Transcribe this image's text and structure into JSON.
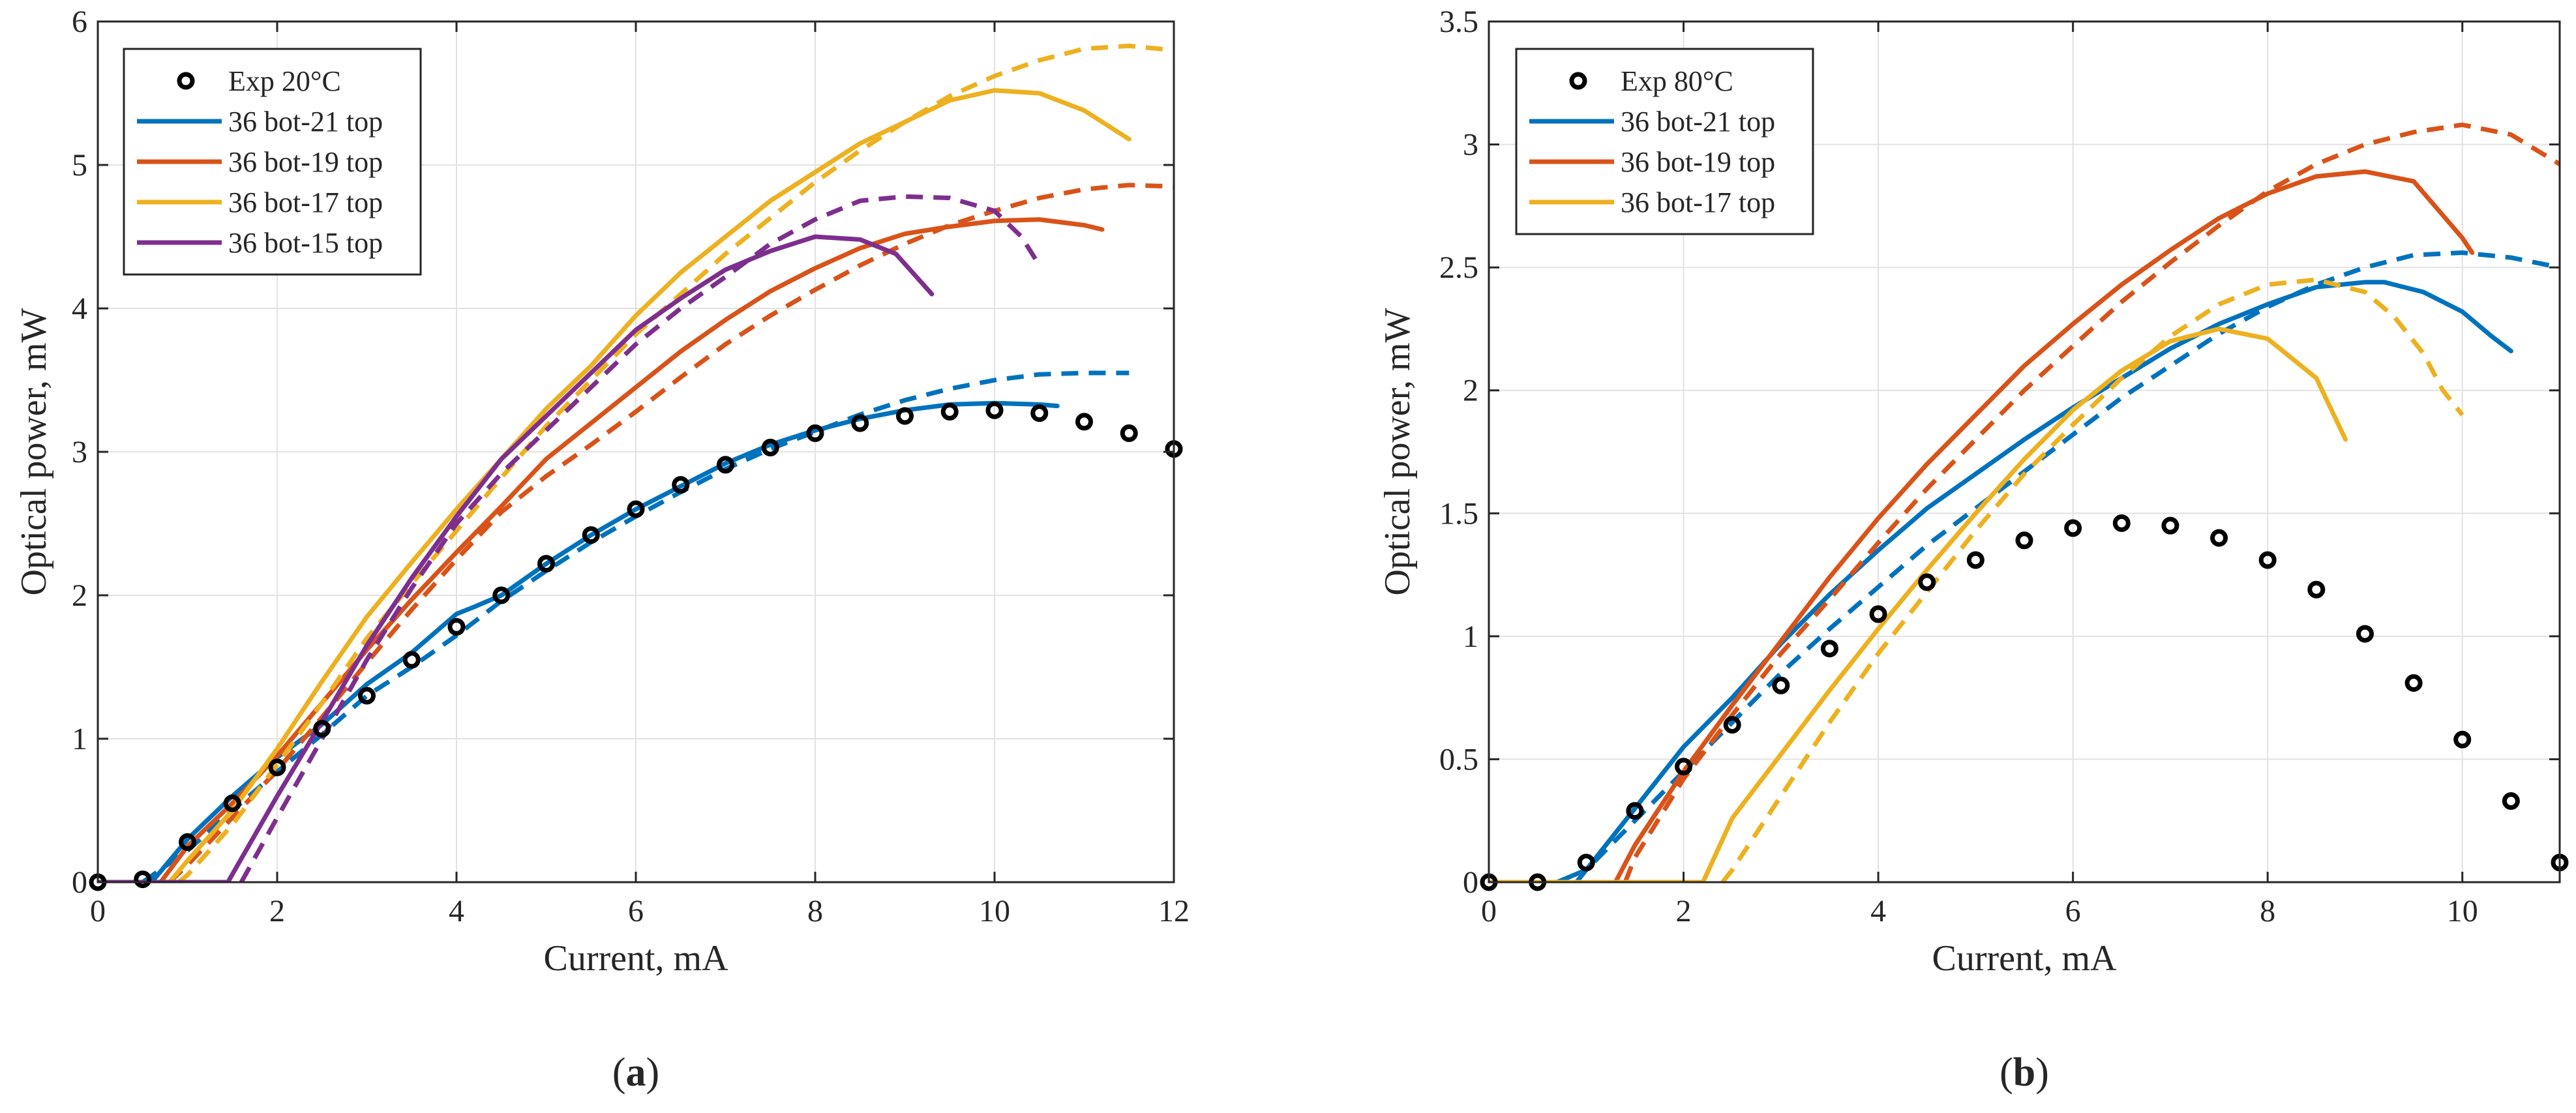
{
  "chart_data": [
    {
      "type": "line",
      "panel": "a",
      "caption_letter": "a",
      "xlabel": "Current, mA",
      "ylabel": "Optical power, mW",
      "xlim": [
        0,
        12
      ],
      "ylim": [
        0,
        6
      ],
      "xticks": [
        0,
        2,
        4,
        6,
        8,
        10,
        12
      ],
      "yticks": [
        0,
        1,
        2,
        3,
        4,
        5,
        6
      ],
      "xtick_labels": [
        "0",
        "2",
        "4",
        "6",
        "8",
        "10",
        "12"
      ],
      "ytick_labels": [
        "0",
        "1",
        "2",
        "3",
        "4",
        "5",
        "6"
      ],
      "grid": true,
      "legend_position": "top-left",
      "experimental": {
        "name": "Exp 20°C",
        "x": [
          0,
          0.5,
          1,
          1.5,
          2,
          2.5,
          3,
          3.5,
          4,
          4.5,
          5,
          5.5,
          6,
          6.5,
          7,
          7.5,
          8,
          8.5,
          9,
          9.5,
          10,
          10.5,
          11,
          11.5,
          12
        ],
        "y": [
          0,
          0.02,
          0.28,
          0.55,
          0.8,
          1.07,
          1.3,
          1.55,
          1.78,
          2.0,
          2.22,
          2.42,
          2.6,
          2.77,
          2.91,
          3.03,
          3.13,
          3.2,
          3.25,
          3.28,
          3.29,
          3.27,
          3.21,
          3.13,
          3.02
        ]
      },
      "series": [
        {
          "name": "36 bot-21 top",
          "color": "#0072BD",
          "solid": {
            "x": [
              0,
              0.6,
              1,
              1.5,
              2,
              2.5,
              3,
              3.5,
              4,
              4.2,
              4.5,
              5,
              5.5,
              6,
              6.5,
              7,
              7.5,
              8,
              8.5,
              9,
              9.5,
              10,
              10.5,
              10.7
            ],
            "y": [
              0,
              0,
              0.3,
              0.6,
              0.87,
              1.1,
              1.38,
              1.6,
              1.87,
              1.92,
              2.0,
              2.22,
              2.42,
              2.6,
              2.76,
              2.92,
              3.05,
              3.15,
              3.23,
              3.29,
              3.33,
              3.34,
              3.33,
              3.32
            ]
          },
          "dashed": {
            "x": [
              0.5,
              1,
              1.5,
              2,
              2.5,
              3,
              3.5,
              4,
              4.5,
              5,
              5.5,
              6,
              6.5,
              7,
              7.5,
              8,
              8.5,
              9,
              9.5,
              10,
              10.5,
              11,
              11.5
            ],
            "y": [
              0,
              0.22,
              0.5,
              0.77,
              1.03,
              1.3,
              1.5,
              1.72,
              1.96,
              2.17,
              2.37,
              2.55,
              2.72,
              2.88,
              3.02,
              3.14,
              3.26,
              3.36,
              3.44,
              3.5,
              3.54,
              3.55,
              3.55
            ]
          }
        },
        {
          "name": "36 bot-19 top",
          "color": "#D95319",
          "solid": {
            "x": [
              0.7,
              1,
              1.5,
              2,
              2.5,
              3,
              3.5,
              4,
              4.5,
              5,
              5.5,
              6,
              6.5,
              7,
              7.5,
              8,
              8.5,
              9,
              9.5,
              10,
              10.5,
              11,
              11.2
            ],
            "y": [
              0,
              0.25,
              0.55,
              0.88,
              1.25,
              1.62,
              1.97,
              2.3,
              2.62,
              2.95,
              3.2,
              3.45,
              3.7,
              3.92,
              4.12,
              4.28,
              4.42,
              4.52,
              4.57,
              4.61,
              4.62,
              4.58,
              4.55
            ]
          },
          "dashed": {
            "x": [
              0.8,
              1,
              1.5,
              2,
              2.5,
              3,
              3.5,
              4,
              4.5,
              5,
              5.5,
              6,
              6.5,
              7,
              7.5,
              8,
              8.5,
              9,
              9.5,
              10,
              10.5,
              11,
              11.5,
              12
            ],
            "y": [
              0,
              0.12,
              0.45,
              0.78,
              1.15,
              1.53,
              1.9,
              2.25,
              2.58,
              2.83,
              3.05,
              3.28,
              3.52,
              3.75,
              3.95,
              4.13,
              4.3,
              4.45,
              4.58,
              4.68,
              4.77,
              4.83,
              4.86,
              4.85
            ]
          }
        },
        {
          "name": "36 bot-17 top",
          "color": "#EDB120",
          "solid": {
            "x": [
              0.8,
              1,
              1.5,
              2,
              2.5,
              3,
              3.5,
              4,
              4.5,
              5,
              5.5,
              6,
              6.5,
              7,
              7.5,
              8,
              8.5,
              9,
              9.5,
              10,
              10.5,
              11,
              11.5
            ],
            "y": [
              0,
              0.15,
              0.5,
              0.93,
              1.4,
              1.85,
              2.23,
              2.6,
              2.95,
              3.3,
              3.6,
              3.95,
              4.25,
              4.5,
              4.75,
              4.95,
              5.15,
              5.3,
              5.45,
              5.52,
              5.5,
              5.38,
              5.18
            ]
          },
          "dashed": {
            "x": [
              0.9,
              1,
              1.5,
              2,
              2.5,
              3,
              3.5,
              4,
              4.5,
              5,
              5.5,
              6,
              6.5,
              7,
              7.5,
              8,
              8.5,
              9,
              9.5,
              10,
              10.5,
              11,
              11.5,
              12
            ],
            "y": [
              0,
              0.05,
              0.4,
              0.82,
              1.25,
              1.7,
              2.08,
              2.45,
              2.82,
              3.18,
              3.5,
              3.82,
              4.1,
              4.38,
              4.63,
              4.88,
              5.1,
              5.3,
              5.48,
              5.62,
              5.73,
              5.81,
              5.83,
              5.8
            ]
          }
        },
        {
          "name": "36 bot-15 top",
          "color": "#7E2F8E",
          "solid": {
            "x": [
              0,
              1.45,
              2,
              2.5,
              3,
              3.5,
              4,
              4.5,
              5,
              5.5,
              6,
              6.5,
              7,
              7.5,
              8,
              8.5,
              8.9,
              9.3
            ],
            "y": [
              0,
              0,
              0.6,
              1.12,
              1.65,
              2.12,
              2.55,
              2.95,
              3.25,
              3.55,
              3.85,
              4.07,
              4.27,
              4.4,
              4.5,
              4.48,
              4.38,
              4.1
            ]
          },
          "dashed": {
            "x": [
              1.6,
              2,
              2.5,
              3,
              3.5,
              4,
              4.5,
              5,
              5.5,
              6,
              6.5,
              7,
              7.5,
              8,
              8.5,
              9,
              9.5,
              10,
              10.3,
              10.5
            ],
            "y": [
              0,
              0.45,
              1.0,
              1.55,
              2.05,
              2.5,
              2.85,
              3.15,
              3.45,
              3.75,
              4.0,
              4.22,
              4.45,
              4.62,
              4.75,
              4.78,
              4.77,
              4.68,
              4.5,
              4.3
            ]
          }
        }
      ]
    },
    {
      "type": "line",
      "panel": "b",
      "caption_letter": "b",
      "xlabel": "Current, mA",
      "ylabel": "Optical power, mW",
      "xlim": [
        0,
        11
      ],
      "ylim": [
        0,
        3.5
      ],
      "xticks": [
        0,
        2,
        4,
        6,
        8,
        10
      ],
      "yticks": [
        0,
        0.5,
        1,
        1.5,
        2,
        2.5,
        3,
        3.5
      ],
      "xtick_labels": [
        "0",
        "2",
        "4",
        "6",
        "8",
        "10"
      ],
      "ytick_labels": [
        "0",
        "0.5",
        "1",
        "1.5",
        "2",
        "2.5",
        "3",
        "3.5"
      ],
      "grid": true,
      "legend_position": "top-left",
      "experimental": {
        "name": "Exp 80°C",
        "x": [
          0,
          0.5,
          1,
          1.5,
          2,
          2.5,
          3,
          3.5,
          4,
          4.5,
          5,
          5.5,
          6,
          6.5,
          7,
          7.5,
          8,
          8.5,
          9,
          9.5,
          10,
          10.5,
          11
        ],
        "y": [
          0,
          0,
          0.08,
          0.29,
          0.47,
          0.64,
          0.8,
          0.95,
          1.09,
          1.22,
          1.31,
          1.39,
          1.44,
          1.46,
          1.45,
          1.4,
          1.31,
          1.19,
          1.01,
          0.81,
          0.58,
          0.33,
          0.08
        ]
      },
      "series": [
        {
          "name": "36 bot-21 top",
          "color": "#0072BD",
          "solid": {
            "x": [
              0,
              0.7,
              1,
              1.5,
              2,
              2.5,
              3,
              3.5,
              4,
              4.5,
              5,
              5.5,
              6,
              6.5,
              7,
              7.5,
              8,
              8.5,
              9,
              9.2,
              9.6,
              10,
              10.3,
              10.5
            ],
            "y": [
              0,
              0,
              0.05,
              0.3,
              0.55,
              0.75,
              0.97,
              1.17,
              1.35,
              1.52,
              1.66,
              1.8,
              1.93,
              2.05,
              2.17,
              2.27,
              2.35,
              2.42,
              2.44,
              2.44,
              2.4,
              2.32,
              2.22,
              2.16
            ]
          },
          "dashed": {
            "x": [
              0.9,
              1,
              1.5,
              2,
              2.5,
              3,
              3.5,
              4,
              4.5,
              5,
              5.5,
              6,
              6.5,
              7,
              7.5,
              8,
              8.5,
              9,
              9.5,
              10,
              10.5,
              11
            ],
            "y": [
              0,
              0.05,
              0.25,
              0.45,
              0.65,
              0.85,
              1.03,
              1.2,
              1.37,
              1.52,
              1.67,
              1.82,
              1.97,
              2.1,
              2.23,
              2.34,
              2.43,
              2.5,
              2.55,
              2.56,
              2.54,
              2.5
            ]
          }
        },
        {
          "name": "36 bot-19 top",
          "color": "#D95319",
          "solid": {
            "x": [
              1.3,
              1.5,
              2,
              2.5,
              3,
              3.5,
              4,
              4.5,
              5,
              5.5,
              6,
              6.5,
              7,
              7.5,
              8,
              8.5,
              9,
              9.5,
              10,
              10.1
            ],
            "y": [
              0,
              0.15,
              0.45,
              0.72,
              0.98,
              1.24,
              1.48,
              1.7,
              1.9,
              2.1,
              2.27,
              2.43,
              2.57,
              2.7,
              2.8,
              2.87,
              2.89,
              2.85,
              2.62,
              2.56
            ]
          },
          "dashed": {
            "x": [
              1.4,
              1.5,
              2,
              2.5,
              3,
              3.5,
              4,
              4.5,
              5,
              5.5,
              6,
              6.5,
              7,
              7.5,
              8,
              8.5,
              9,
              9.5,
              10,
              10.5,
              11
            ],
            "y": [
              0,
              0.1,
              0.42,
              0.68,
              0.93,
              1.15,
              1.38,
              1.6,
              1.8,
              2.0,
              2.18,
              2.36,
              2.52,
              2.67,
              2.81,
              2.92,
              3.0,
              3.05,
              3.08,
              3.04,
              2.92
            ]
          }
        },
        {
          "name": "36 bot-17 top",
          "color": "#EDB120",
          "solid": {
            "x": [
              0,
              2.2,
              2.5,
              3,
              3.5,
              4,
              4.5,
              5,
              5.5,
              6,
              6.5,
              7,
              7.5,
              8,
              8.5,
              8.8
            ],
            "y": [
              0,
              0,
              0.26,
              0.52,
              0.78,
              1.03,
              1.27,
              1.5,
              1.72,
              1.92,
              2.08,
              2.2,
              2.25,
              2.21,
              2.05,
              1.8
            ]
          },
          "dashed": {
            "x": [
              2.4,
              2.5,
              3,
              3.5,
              4,
              4.5,
              5,
              5.5,
              6,
              6.5,
              7,
              7.5,
              8,
              8.5,
              9,
              9.3,
              9.6,
              9.8,
              10
            ],
            "y": [
              0,
              0.05,
              0.35,
              0.65,
              0.93,
              1.18,
              1.43,
              1.66,
              1.86,
              2.05,
              2.22,
              2.35,
              2.43,
              2.45,
              2.4,
              2.3,
              2.15,
              2.0,
              1.9
            ]
          }
        }
      ]
    }
  ]
}
